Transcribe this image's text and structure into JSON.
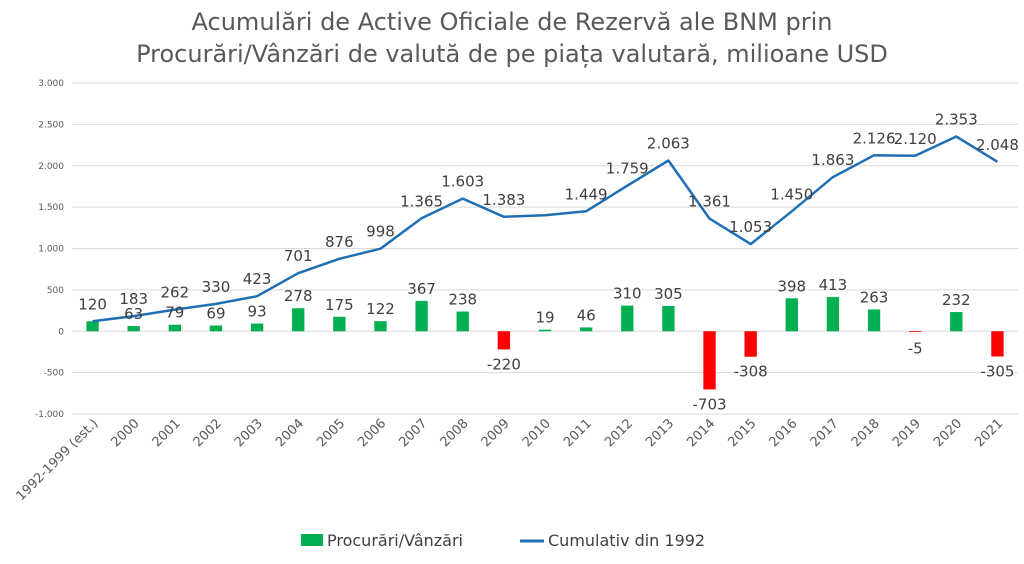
{
  "chart_data": {
    "type": "bar+line",
    "title_line1": "Acumulări de Active Oficiale de Rezervă  ale BNM prin",
    "title_line2": "Procurări/Vânzări de valută de pe piața valutară, milioane USD",
    "categories": [
      "1992-1999 (est.)",
      "2000",
      "2001",
      "2002",
      "2003",
      "2004",
      "2005",
      "2006",
      "2007",
      "2008",
      "2009",
      "2010",
      "2011",
      "2012",
      "2013",
      "2014",
      "2015",
      "2016",
      "2017",
      "2018",
      "2019",
      "2020",
      "2021"
    ],
    "series": [
      {
        "name": "Procurări/Vânzări",
        "type": "bar",
        "values": [
          120,
          63,
          79,
          69,
          93,
          278,
          175,
          122,
          367,
          238,
          -220,
          19,
          46,
          310,
          305,
          -703,
          -308,
          398,
          413,
          263,
          -5,
          232,
          -305
        ],
        "labels": [
          "",
          "63",
          "79",
          "69",
          "93",
          "278",
          "175",
          "122",
          "367",
          "238",
          "-220",
          "19",
          "46",
          "310",
          "305",
          "-703",
          "-308",
          "398",
          "413",
          "263",
          "-5",
          "232",
          "-305"
        ]
      },
      {
        "name": "Cumulativ din 1992",
        "type": "line",
        "values": [
          120,
          183,
          262,
          330,
          423,
          701,
          876,
          998,
          1365,
          1603,
          1383,
          1402,
          1449,
          1759,
          2063,
          1361,
          1053,
          1450,
          1863,
          2126,
          2120,
          2353,
          2048
        ],
        "labels": [
          "120",
          "183",
          "262",
          "330",
          "423",
          "701",
          "876",
          "998",
          "1.365",
          "1.603",
          "1.383",
          "",
          "1.449",
          "1.759",
          "2.063",
          "1.361",
          "1.053",
          "1.450",
          "1.863",
          "2.126",
          "2.120",
          "2.353",
          "2.048"
        ]
      }
    ],
    "ylim": [
      -1000,
      3000
    ],
    "yticks": [
      -1000,
      -500,
      0,
      500,
      1000,
      1500,
      2000,
      2500,
      3000
    ],
    "ytick_labels": [
      "-1.000",
      "-500",
      "0",
      "500",
      "1.000",
      "1.500",
      "2.000",
      "2.500",
      "3.000"
    ],
    "legend_position": "bottom-center",
    "colors": {
      "positive": "#00B050",
      "negative": "#FF0000",
      "line": "#1F6FB5",
      "grid": "#D9D9D9",
      "text": "#404040",
      "axis_text": "#595959"
    }
  }
}
